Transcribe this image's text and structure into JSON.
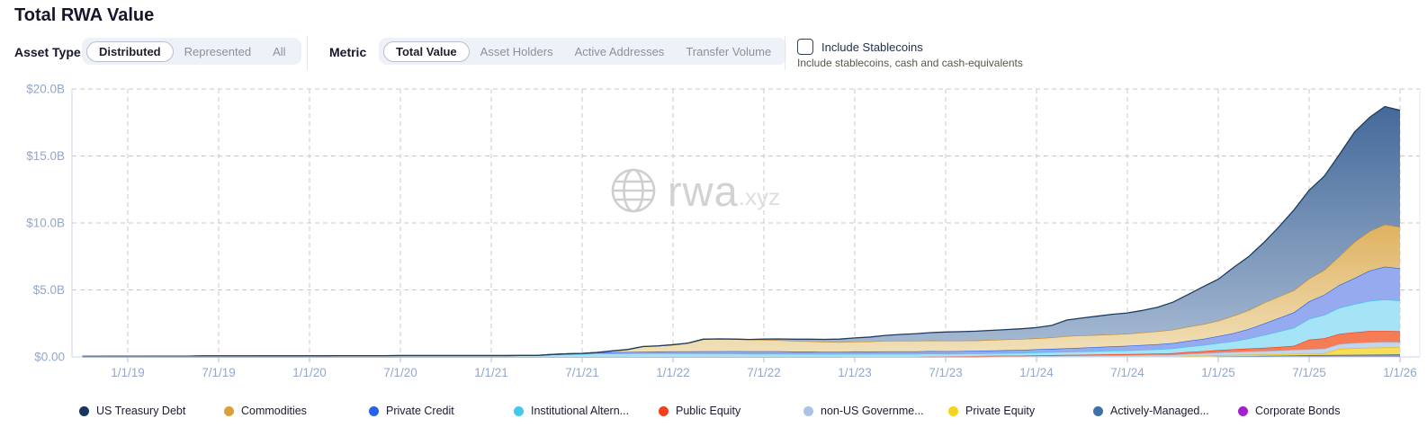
{
  "header": {
    "title": "Total RWA Value"
  },
  "controls": {
    "asset_type": {
      "label": "Asset Type",
      "options": [
        "Distributed",
        "Represented",
        "All"
      ],
      "selected": "Distributed"
    },
    "metric": {
      "label": "Metric",
      "options": [
        "Total Value",
        "Asset Holders",
        "Active Addresses",
        "Transfer Volume"
      ],
      "selected": "Total Value"
    },
    "stablecoins": {
      "label": "Include Stablecoins",
      "description": "Include stablecoins, cash and cash-equivalents",
      "checked": false
    }
  },
  "watermark": {
    "icon": "globe-icon",
    "text": "rwa",
    "suffix": ".xyz"
  },
  "chart_data": {
    "type": "area",
    "stacked": true,
    "title": "Total RWA Value",
    "xlabel": "",
    "ylabel": "",
    "ylim": [
      0,
      20
    ],
    "grid": true,
    "legend_position": "bottom",
    "yticks": [
      {
        "v": 0,
        "label": "$0.00"
      },
      {
        "v": 5,
        "label": "$5.0B"
      },
      {
        "v": 10,
        "label": "$10.0B"
      },
      {
        "v": 15,
        "label": "$15.0B"
      },
      {
        "v": 20,
        "label": "$20.0B"
      }
    ],
    "xticks": [
      "1/1/19",
      "7/1/19",
      "1/1/20",
      "7/1/20",
      "1/1/21",
      "7/1/21",
      "1/1/22",
      "7/1/22",
      "1/1/23",
      "7/1/23",
      "1/1/24",
      "7/1/24",
      "1/1/25",
      "7/1/25",
      "1/1/26"
    ],
    "x": [
      "2018-10",
      "2018-11",
      "2018-12",
      "2019-01",
      "2019-02",
      "2019-03",
      "2019-04",
      "2019-05",
      "2019-06",
      "2019-07",
      "2019-08",
      "2019-09",
      "2019-10",
      "2019-11",
      "2019-12",
      "2020-01",
      "2020-02",
      "2020-03",
      "2020-04",
      "2020-05",
      "2020-06",
      "2020-07",
      "2020-08",
      "2020-09",
      "2020-10",
      "2020-11",
      "2020-12",
      "2021-01",
      "2021-02",
      "2021-03",
      "2021-04",
      "2021-05",
      "2021-06",
      "2021-07",
      "2021-08",
      "2021-09",
      "2021-10",
      "2021-11",
      "2021-12",
      "2022-01",
      "2022-02",
      "2022-03",
      "2022-04",
      "2022-05",
      "2022-06",
      "2022-07",
      "2022-08",
      "2022-09",
      "2022-10",
      "2022-11",
      "2022-12",
      "2023-01",
      "2023-02",
      "2023-03",
      "2023-04",
      "2023-05",
      "2023-06",
      "2023-07",
      "2023-08",
      "2023-09",
      "2023-10",
      "2023-11",
      "2023-12",
      "2024-01",
      "2024-02",
      "2024-03",
      "2024-04",
      "2024-05",
      "2024-06",
      "2024-07",
      "2024-08",
      "2024-09",
      "2024-10",
      "2024-11",
      "2024-12",
      "2025-01",
      "2025-02",
      "2025-03",
      "2025-04",
      "2025-05",
      "2025-06",
      "2025-07",
      "2025-08",
      "2025-09",
      "2025-10",
      "2025-11",
      "2025-12",
      "2026-01"
    ],
    "series": [
      {
        "key": "corporate_bonds",
        "name": "Corporate Bonds",
        "dot": "#a31fd0",
        "color": "#9b1fd0",
        "fillc": "#c57ae0",
        "values": [
          0,
          0,
          0,
          0,
          0,
          0,
          0,
          0,
          0,
          0,
          0,
          0,
          0,
          0,
          0,
          0,
          0,
          0,
          0,
          0,
          0,
          0,
          0,
          0,
          0,
          0,
          0,
          0,
          0,
          0,
          0,
          0,
          0,
          0,
          0,
          0,
          0,
          0,
          0,
          0,
          0,
          0,
          0,
          0,
          0,
          0,
          0,
          0,
          0,
          0,
          0,
          0,
          0,
          0,
          0,
          0,
          0,
          0,
          0,
          0,
          0.01,
          0.01,
          0.01,
          0.02,
          0.02,
          0.02,
          0.02,
          0.02,
          0.02,
          0.02,
          0.02,
          0.02,
          0.02,
          0.02,
          0.02,
          0.03,
          0.03,
          0.03,
          0.03,
          0.03,
          0.03,
          0.04,
          0.04,
          0.04,
          0.04,
          0.04,
          0.04,
          0.05
        ]
      },
      {
        "key": "actively_managed",
        "name": "Actively-Managed...",
        "dot": "#3c72a5",
        "color": "#3a6f9f",
        "fillc": "#6f94b5",
        "values": [
          0,
          0,
          0,
          0,
          0,
          0,
          0,
          0,
          0,
          0,
          0,
          0,
          0,
          0,
          0,
          0,
          0,
          0,
          0,
          0,
          0,
          0,
          0,
          0,
          0,
          0,
          0,
          0,
          0,
          0,
          0,
          0,
          0,
          0,
          0,
          0,
          0,
          0,
          0,
          0,
          0,
          0,
          0,
          0,
          0,
          0,
          0,
          0,
          0,
          0,
          0,
          0,
          0,
          0,
          0,
          0,
          0,
          0,
          0,
          0,
          0,
          0,
          0,
          0,
          0,
          0,
          0,
          0,
          0,
          0,
          0,
          0,
          0,
          0,
          0,
          0.02,
          0.03,
          0.04,
          0.05,
          0.06,
          0.08,
          0.09,
          0.1,
          0.11,
          0.12,
          0.13,
          0.14,
          0.14
        ]
      },
      {
        "key": "private_equity",
        "name": "Private Equity",
        "dot": "#f5d319",
        "color": "#e3c010",
        "fillc": "#f8dd55",
        "values": [
          0,
          0,
          0,
          0,
          0,
          0,
          0,
          0,
          0,
          0,
          0,
          0,
          0,
          0,
          0,
          0,
          0,
          0,
          0,
          0,
          0,
          0,
          0,
          0,
          0,
          0,
          0,
          0,
          0,
          0,
          0,
          0,
          0,
          0,
          0,
          0,
          0,
          0,
          0,
          0,
          0,
          0,
          0,
          0,
          0,
          0,
          0,
          0,
          0,
          0,
          0,
          0,
          0,
          0,
          0,
          0,
          0,
          0,
          0,
          0,
          0,
          0,
          0,
          0,
          0,
          0,
          0,
          0,
          0,
          0,
          0,
          0,
          0,
          0.05,
          0.07,
          0.08,
          0.09,
          0.1,
          0.1,
          0.11,
          0.12,
          0.12,
          0.13,
          0.45,
          0.5,
          0.52,
          0.53,
          0.52
        ]
      },
      {
        "key": "non_us_government_debt",
        "name": "non-US Governme...",
        "dot": "#a9c3e6",
        "color": "#9cb9de",
        "fillc": "#c3d4ec",
        "values": [
          0,
          0,
          0,
          0,
          0,
          0,
          0,
          0,
          0,
          0,
          0,
          0,
          0,
          0,
          0,
          0,
          0,
          0,
          0,
          0,
          0,
          0,
          0,
          0,
          0,
          0,
          0,
          0,
          0,
          0,
          0,
          0,
          0,
          0,
          0,
          0,
          0,
          0,
          0,
          0,
          0,
          0,
          0,
          0,
          0,
          0,
          0,
          0,
          0,
          0,
          0,
          0,
          0,
          0,
          0,
          0,
          0.02,
          0.02,
          0.03,
          0.03,
          0.03,
          0.04,
          0.04,
          0.05,
          0.06,
          0.07,
          0.08,
          0.09,
          0.1,
          0.11,
          0.12,
          0.13,
          0.14,
          0.16,
          0.18,
          0.2,
          0.22,
          0.24,
          0.26,
          0.28,
          0.3,
          0.32,
          0.34,
          0.36,
          0.38,
          0.4,
          0.41,
          0.4
        ]
      },
      {
        "key": "public_equity",
        "name": "Public Equity",
        "dot": "#f43f17",
        "color": "#f43f17",
        "fillc": "#f67c55",
        "values": [
          0,
          0,
          0,
          0,
          0,
          0,
          0,
          0,
          0,
          0,
          0,
          0,
          0,
          0,
          0,
          0,
          0,
          0,
          0,
          0,
          0,
          0,
          0,
          0,
          0,
          0,
          0,
          0,
          0,
          0,
          0,
          0,
          0,
          0,
          0,
          0,
          0,
          0,
          0,
          0,
          0,
          0,
          0,
          0,
          0,
          0,
          0,
          0,
          0,
          0,
          0,
          0.02,
          0.02,
          0.02,
          0.03,
          0.03,
          0.03,
          0.03,
          0.03,
          0.04,
          0.04,
          0.04,
          0.04,
          0.05,
          0.05,
          0.06,
          0.06,
          0.07,
          0.08,
          0.08,
          0.09,
          0.1,
          0.12,
          0.14,
          0.16,
          0.18,
          0.2,
          0.22,
          0.24,
          0.27,
          0.3,
          0.72,
          0.78,
          0.76,
          0.8,
          0.85,
          0.82,
          0.8
        ]
      },
      {
        "key": "institutional_alternative",
        "name": "Institutional Altern...",
        "dot": "#45c8ee",
        "color": "#3ec4ec",
        "fillc": "#a5e3f6",
        "values": [
          0.04,
          0.04,
          0.05,
          0.05,
          0.05,
          0.06,
          0.06,
          0.06,
          0.07,
          0.07,
          0.07,
          0.07,
          0.08,
          0.08,
          0.08,
          0.08,
          0.08,
          0.09,
          0.09,
          0.09,
          0.09,
          0.1,
          0.1,
          0.1,
          0.1,
          0.1,
          0.1,
          0.1,
          0.1,
          0.11,
          0.11,
          0.18,
          0.2,
          0.21,
          0.26,
          0.26,
          0.26,
          0.27,
          0.27,
          0.27,
          0.26,
          0.26,
          0.25,
          0.25,
          0.24,
          0.24,
          0.24,
          0.23,
          0.23,
          0.22,
          0.22,
          0.22,
          0.21,
          0.21,
          0.2,
          0.2,
          0.2,
          0.19,
          0.19,
          0.19,
          0.2,
          0.2,
          0.21,
          0.22,
          0.23,
          0.24,
          0.25,
          0.26,
          0.27,
          0.28,
          0.3,
          0.32,
          0.35,
          0.4,
          0.45,
          0.52,
          0.6,
          0.75,
          0.95,
          1.15,
          1.35,
          1.55,
          1.75,
          1.95,
          2.1,
          2.25,
          2.35,
          2.3
        ]
      },
      {
        "key": "private_credit",
        "name": "Private Credit",
        "dot": "#2563eb",
        "color": "#2563eb",
        "fillc": "#96abef",
        "values": [
          0,
          0,
          0,
          0,
          0,
          0,
          0,
          0,
          0,
          0,
          0,
          0,
          0,
          0,
          0,
          0,
          0,
          0,
          0,
          0,
          0,
          0,
          0,
          0,
          0,
          0,
          0,
          0,
          0,
          0,
          0,
          0,
          0.03,
          0.05,
          0.07,
          0.09,
          0.11,
          0.12,
          0.13,
          0.14,
          0.15,
          0.16,
          0.17,
          0.18,
          0.18,
          0.18,
          0.18,
          0.17,
          0.17,
          0.17,
          0.17,
          0.17,
          0.17,
          0.18,
          0.18,
          0.18,
          0.19,
          0.19,
          0.19,
          0.2,
          0.2,
          0.21,
          0.22,
          0.23,
          0.24,
          0.26,
          0.28,
          0.3,
          0.32,
          0.34,
          0.36,
          0.38,
          0.4,
          0.43,
          0.46,
          0.52,
          0.6,
          0.7,
          0.85,
          1,
          1.15,
          1.3,
          1.5,
          1.7,
          1.95,
          2.25,
          2.45,
          2.4
        ]
      },
      {
        "key": "commodities",
        "name": "Commodities",
        "dot": "#d9a03c",
        "color": "#c28d2e",
        "gradient": [
          "#dfb261",
          "#f1e1ba"
        ],
        "values": [
          0,
          0,
          0,
          0,
          0,
          0,
          0,
          0,
          0,
          0,
          0,
          0,
          0,
          0,
          0,
          0,
          0,
          0,
          0,
          0,
          0,
          0,
          0,
          0,
          0,
          0,
          0,
          0,
          0,
          0,
          0,
          0,
          0,
          0,
          0,
          0.1,
          0.18,
          0.38,
          0.42,
          0.5,
          0.62,
          0.9,
          0.92,
          0.9,
          0.88,
          0.86,
          0.83,
          0.8,
          0.77,
          0.74,
          0.72,
          0.73,
          0.75,
          0.79,
          0.81,
          0.8,
          0.79,
          0.79,
          0.78,
          0.77,
          0.79,
          0.81,
          0.82,
          0.82,
          0.85,
          0.9,
          0.91,
          0.9,
          0.89,
          0.9,
          0.93,
          0.96,
          1,
          1.05,
          1.1,
          1.15,
          1.3,
          1.4,
          1.55,
          1.6,
          1.65,
          1.7,
          1.85,
          2.15,
          2.7,
          2.95,
          3.15,
          3.1
        ]
      },
      {
        "key": "us_treasury_debt",
        "name": "US Treasury Debt",
        "dot": "#17365f",
        "color": "#1c3c62",
        "gradient": [
          "#44699a",
          "#a9bcd4"
        ],
        "values": [
          0,
          0,
          0,
          0,
          0,
          0,
          0,
          0,
          0,
          0,
          0,
          0,
          0,
          0,
          0,
          0,
          0,
          0,
          0,
          0,
          0,
          0,
          0,
          0,
          0,
          0,
          0,
          0,
          0,
          0,
          0,
          0,
          0,
          0,
          0,
          0,
          0,
          0,
          0,
          0,
          0,
          0,
          0,
          0,
          0,
          0.05,
          0.09,
          0.12,
          0.15,
          0.18,
          0.22,
          0.28,
          0.33,
          0.4,
          0.46,
          0.52,
          0.58,
          0.64,
          0.67,
          0.69,
          0.71,
          0.73,
          0.76,
          0.8,
          0.9,
          1.2,
          1.3,
          1.4,
          1.5,
          1.55,
          1.65,
          1.8,
          2.05,
          2.4,
          2.8,
          3.1,
          3.6,
          4,
          4.5,
          5.2,
          6,
          6.6,
          7,
          7.6,
          8.2,
          8.5,
          8.8,
          8.7
        ]
      }
    ]
  }
}
